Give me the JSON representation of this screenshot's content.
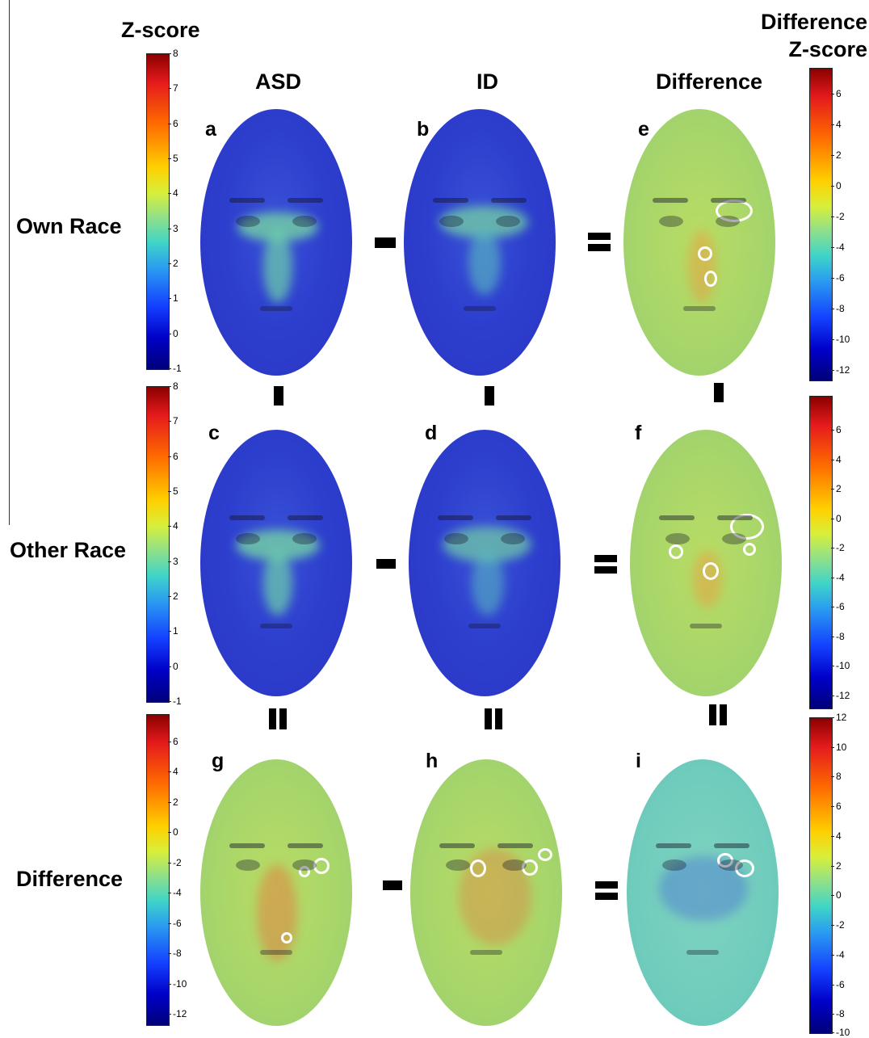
{
  "headers": {
    "left_colorbar_title": "Z-score",
    "right_colorbar_title": "Difference Z-score",
    "columns": [
      "ASD",
      "ID",
      "Difference"
    ]
  },
  "rows": [
    "Own Race",
    "Other Race",
    "Difference"
  ],
  "panels": [
    "a",
    "b",
    "e",
    "c",
    "d",
    "f",
    "g",
    "h",
    "i"
  ],
  "operators": {
    "minus": "-",
    "equals": "="
  },
  "colorbars": {
    "zscore_ticks": [
      "8",
      "7",
      "6",
      "5",
      "4",
      "3",
      "2",
      "1",
      "0",
      "-1"
    ],
    "difference_ticks": [
      "6",
      "4",
      "2",
      "0",
      "-2",
      "-4",
      "-6",
      "-8",
      "-10",
      "-12"
    ],
    "final_difference_ticks": [
      "12",
      "10",
      "8",
      "6",
      "4",
      "2",
      "0",
      "-2",
      "-4",
      "-6",
      "-8",
      "-10"
    ]
  }
}
